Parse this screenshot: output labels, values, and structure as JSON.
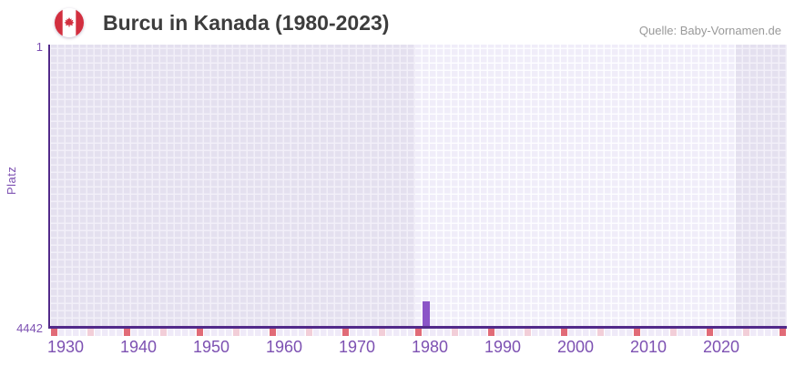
{
  "header": {
    "title": "Burcu in Kanada (1980-2023)",
    "source": "Quelle: Baby-Vornamen.de",
    "flag": "canada-flag-icon"
  },
  "chart_data": {
    "type": "bar",
    "title": "Burcu in Kanada (1980-2023)",
    "ylabel": "Platz",
    "y_axis": {
      "min": 1,
      "max": 4442,
      "inverted": true,
      "tick_labels": [
        "1",
        "4442"
      ]
    },
    "x_axis": {
      "start_year": 1929,
      "end_year": 2030,
      "tick_years": [
        1930,
        1940,
        1950,
        1960,
        1970,
        1980,
        1990,
        2000,
        2010,
        2020
      ]
    },
    "data_range": {
      "from": 1980,
      "to": 2023
    },
    "highlight_band": {
      "from": 1979,
      "to": 2023
    },
    "series": [
      {
        "name": "Platz",
        "points": [
          {
            "year": 1980,
            "rank": 4050
          }
        ]
      }
    ],
    "axis_markers": {
      "decades": [
        1930,
        1940,
        1950,
        1960,
        1970,
        1980,
        1990,
        2000,
        2010,
        2020,
        2030
      ],
      "half_decades": [
        1935,
        1945,
        1955,
        1965,
        1975,
        1985,
        1995,
        2005,
        2015,
        2025
      ]
    },
    "grid": true,
    "legend": false
  },
  "colors": {
    "bar": "#8b55c7",
    "axis_line": "#522a8a",
    "axis_text": "#7d51b2",
    "grid_cell_dark": "#e4e0ef",
    "grid_cell_light": "#f0edf9",
    "decade_marker": "#e16b77",
    "half_decade_marker": "#f2ced8",
    "title_text": "#3d3d3d",
    "source_text": "#999999",
    "flag_red": "#d22f3f"
  }
}
